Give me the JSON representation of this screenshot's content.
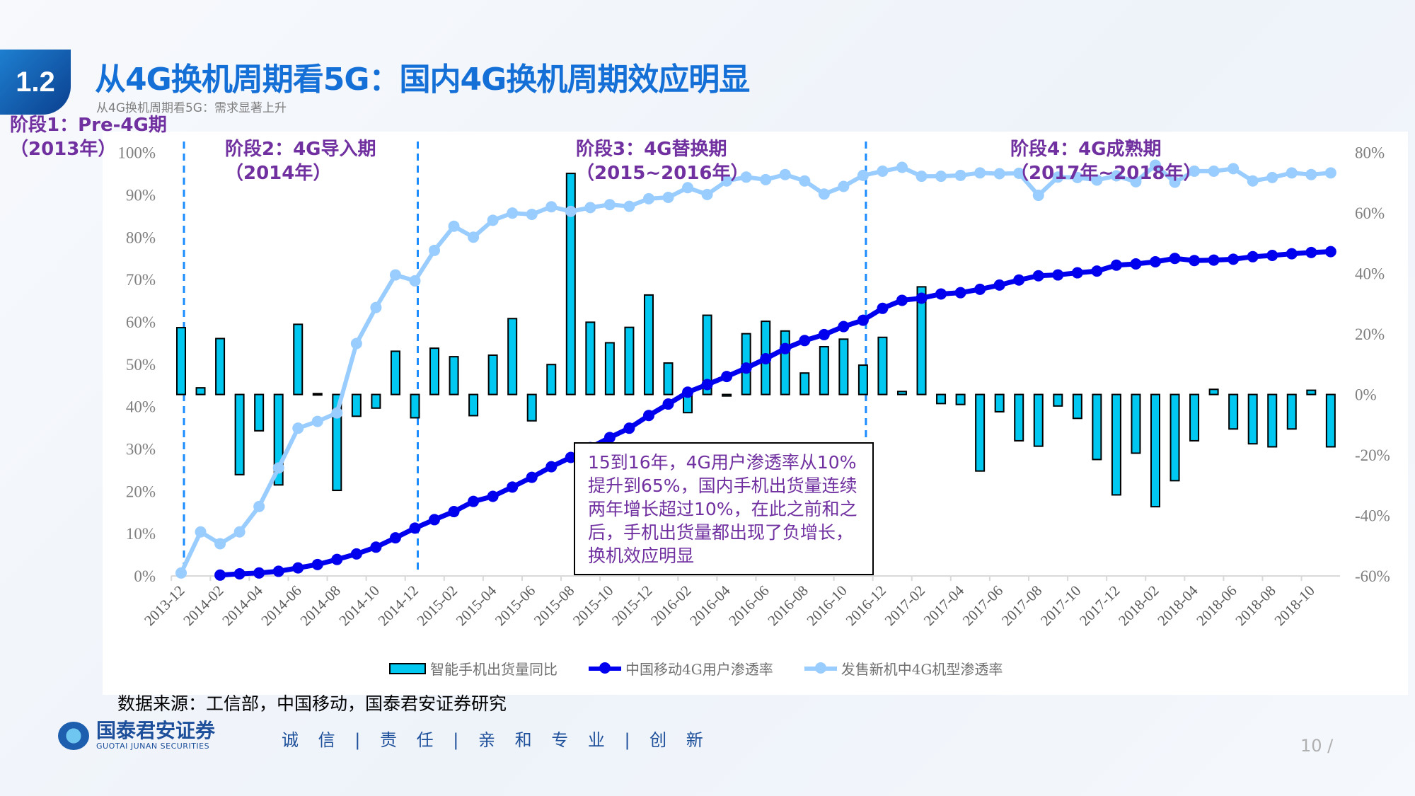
{
  "header": {
    "section_number": "1.2",
    "title": "从4G换机周期看5G：国内4G换机周期效应明显",
    "subtitle": "从4G换机周期看5G：需求显著上升"
  },
  "phases": [
    {
      "line1": "阶段1：Pre-4G期",
      "line2": "（2013年）"
    },
    {
      "line1": "阶段2：4G导入期",
      "line2": "（2014年）"
    },
    {
      "line1": "阶段3：4G替换期",
      "line2": "（2015~2016年）"
    },
    {
      "line1": "阶段4：4G成熟期",
      "line2": "（2017年~2018年）"
    }
  ],
  "annotation": "15到16年，4G用户渗透率从10%提升到65%，国内手机出货量连续两年增长超过10%，在此之前和之后，手机出货量都出现了负增长，换机效应明显",
  "source": "数据来源：工信部，中国移动，国泰君安证券研究",
  "footer": {
    "logo_cn": "国泰君安证券",
    "logo_en": "GUOTAI JUNAN SECURITIES",
    "slogan": "诚 信 | 责 任 | 亲 和  专 业 | 创 新",
    "page": "10 /"
  },
  "chart_data": {
    "type": "bar+line",
    "categories": [
      "2013-12",
      "2014-01",
      "2014-02",
      "2014-03",
      "2014-04",
      "2014-05",
      "2014-06",
      "2014-07",
      "2014-08",
      "2014-09",
      "2014-10",
      "2014-11",
      "2014-12",
      "2015-01",
      "2015-02",
      "2015-03",
      "2015-04",
      "2015-05",
      "2015-06",
      "2015-07",
      "2015-08",
      "2015-09",
      "2015-10",
      "2015-11",
      "2015-12",
      "2016-01",
      "2016-02",
      "2016-03",
      "2016-04",
      "2016-05",
      "2016-06",
      "2016-07",
      "2016-08",
      "2016-09",
      "2016-10",
      "2016-11",
      "2016-12",
      "2017-01",
      "2017-02",
      "2017-03",
      "2017-04",
      "2017-05",
      "2017-06",
      "2017-07",
      "2017-08",
      "2017-09",
      "2017-10",
      "2017-11",
      "2017-12",
      "2018-01",
      "2018-02",
      "2018-03",
      "2018-04",
      "2018-05",
      "2018-06",
      "2018-07",
      "2018-08",
      "2018-09",
      "2018-10",
      "2018-11"
    ],
    "x_tick_labels": [
      "2013-12",
      "2014-02",
      "2014-04",
      "2014-06",
      "2014-08",
      "2014-10",
      "2014-12",
      "2015-02",
      "2015-04",
      "2015-06",
      "2015-08",
      "2015-10",
      "2015-12",
      "2016-02",
      "2016-04",
      "2016-06",
      "2016-08",
      "2016-10",
      "2016-12",
      "2017-02",
      "2017-04",
      "2017-06",
      "2017-08",
      "2017-10",
      "2017-12",
      "2018-02",
      "2018-04",
      "2018-06",
      "2018-08",
      "2018-10"
    ],
    "phase_boundaries": [
      "2013-12",
      "2014-12",
      "2016-11"
    ],
    "y_left": {
      "ticks": [
        "0%",
        "10%",
        "20%",
        "30%",
        "40%",
        "50%",
        "60%",
        "70%",
        "80%",
        "90%",
        "100%"
      ],
      "range": [
        0,
        100
      ]
    },
    "y_right": {
      "ticks": [
        "-60%",
        "-40%",
        "-20%",
        "0%",
        "20%",
        "40%",
        "60%",
        "80%"
      ],
      "range": [
        -60,
        80
      ]
    },
    "series": [
      {
        "name": "智能手机出货量同比",
        "type": "bar",
        "axis": "right",
        "color": "#00c8f0",
        "values": [
          22.1,
          2.2,
          18.5,
          -26.5,
          -12.0,
          -29.9,
          23.2,
          0.3,
          -31.7,
          -7.2,
          -4.5,
          14.3,
          -7.7,
          15.3,
          12.5,
          -7.0,
          13.0,
          25.1,
          -8.7,
          9.9,
          73.1,
          23.9,
          17.1,
          22.2,
          32.9,
          10.4,
          -6.0,
          26.2,
          -0.5,
          20.1,
          24.2,
          21.0,
          7.1,
          15.8,
          18.3,
          9.7,
          18.9,
          1.0,
          35.6,
          -3.0,
          -3.3,
          -25.3,
          -5.7,
          -15.3,
          -17.1,
          -3.8,
          -7.9,
          -21.5,
          -33.2,
          -19.4,
          -37.1,
          -28.5,
          -15.3,
          1.7,
          -11.4,
          -16.3,
          -17.3,
          -11.4,
          1.4,
          -17.3
        ]
      },
      {
        "name": "中国移动4G用户渗透率",
        "type": "line",
        "axis": "left",
        "color": "#0000ee",
        "values": [
          null,
          null,
          0.2,
          0.5,
          0.7,
          1.1,
          1.9,
          2.7,
          3.9,
          5.2,
          6.8,
          9.0,
          11.3,
          13.3,
          15.2,
          17.6,
          18.8,
          21.0,
          23.3,
          25.8,
          28.0,
          30.3,
          32.7,
          34.9,
          37.9,
          40.6,
          43.4,
          45.2,
          47.1,
          49.1,
          51.3,
          53.7,
          55.6,
          57.0,
          58.9,
          60.4,
          63.2,
          65.1,
          65.6,
          66.6,
          66.9,
          67.7,
          68.7,
          69.9,
          70.9,
          71.1,
          71.6,
          72.0,
          73.4,
          73.7,
          74.2,
          75.0,
          74.5,
          74.6,
          74.8,
          75.4,
          75.7,
          76.1,
          76.4,
          76.6
        ]
      },
      {
        "name": "发售新机中4G机型渗透率",
        "type": "line",
        "axis": "left",
        "color": "#99ccff",
        "values": [
          0.7,
          10.4,
          7.6,
          10.4,
          16.4,
          25.5,
          34.9,
          36.5,
          38.5,
          54.9,
          63.4,
          71.1,
          69.7,
          76.9,
          82.6,
          80.0,
          84.0,
          85.7,
          85.4,
          87.2,
          86.1,
          87.0,
          87.7,
          87.3,
          89.1,
          89.4,
          91.7,
          90.1,
          93.3,
          94.2,
          93.6,
          94.8,
          93.3,
          90.2,
          92.0,
          94.6,
          95.6,
          96.5,
          94.4,
          94.4,
          94.6,
          95.2,
          95.0,
          95.1,
          89.9,
          94.2,
          94.1,
          93.5,
          94.5,
          93.1,
          97.0,
          93.0,
          95.6,
          95.6,
          96.2,
          93.3,
          94.1,
          95.2,
          94.8,
          95.2
        ]
      }
    ],
    "legend": "bottom"
  }
}
